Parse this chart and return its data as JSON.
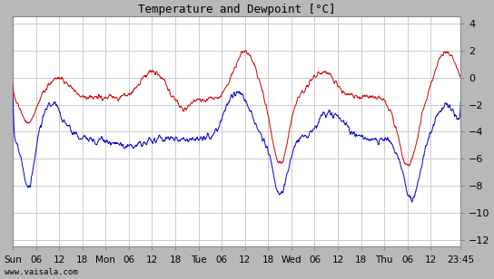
{
  "title": "Temperature and Dewpoint [°C]",
  "ylim": [
    -12.5,
    4.5
  ],
  "yticks": [
    -12,
    -10,
    -8,
    -6,
    -4,
    -2,
    0,
    2,
    4
  ],
  "bg_color": "#b8b8b8",
  "plot_bg_color": "#ffffff",
  "grid_color": "#cccccc",
  "line_color_red": "#cc0000",
  "line_color_blue": "#0000cc",
  "watermark": "www.vaisala.com",
  "x_tick_labels": [
    "Sun",
    "06",
    "12",
    "18",
    "Mon",
    "06",
    "12",
    "18",
    "Tue",
    "06",
    "12",
    "18",
    "Wed",
    "06",
    "12",
    "18",
    "Thu",
    "06",
    "12",
    "23:45"
  ],
  "x_tick_positions": [
    0,
    6,
    12,
    18,
    24,
    30,
    36,
    42,
    48,
    54,
    60,
    66,
    72,
    78,
    84,
    90,
    96,
    102,
    108,
    115.75
  ],
  "total_hours": 115.75
}
